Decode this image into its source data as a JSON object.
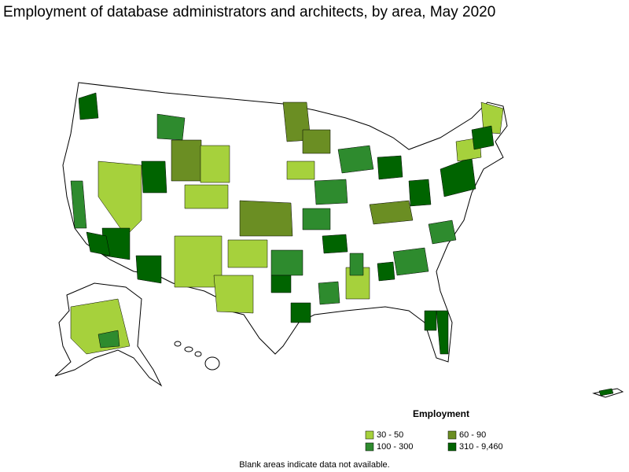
{
  "title": "Employment of database administrators and architects, by area, May 2020",
  "legend": {
    "title": "Employment",
    "items": [
      {
        "label": "30 - 50",
        "color": "#a6d13c"
      },
      {
        "label": "60 - 90",
        "color": "#6b8e23"
      },
      {
        "label": "100 - 300",
        "color": "#2e8b2e"
      },
      {
        "label": "310 - 9,460",
        "color": "#006400"
      }
    ]
  },
  "footnote": "Blank areas indicate data not available."
}
